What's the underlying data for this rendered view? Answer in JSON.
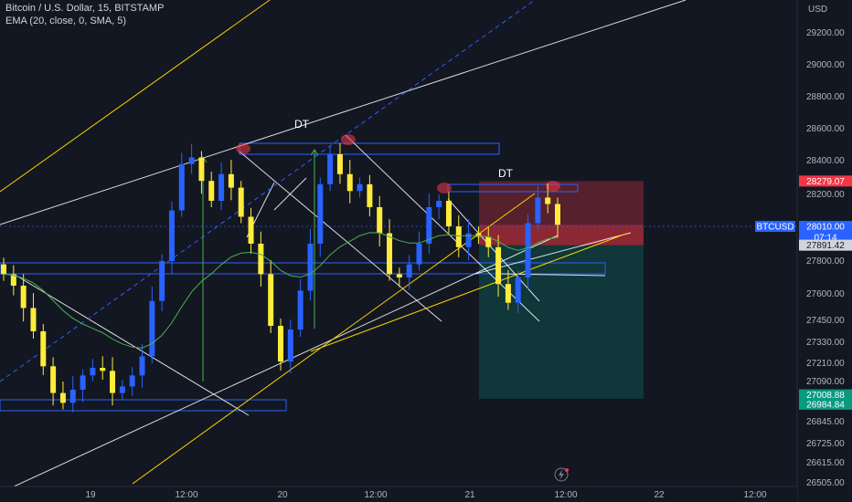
{
  "header": {
    "symbol_line": "Bitcoin / U.S. Dollar, 15, BITSTAMP",
    "indicator_line": "EMA (20, close, 0, SMA, 5)"
  },
  "axis": {
    "currency": "USD",
    "price_ticks": [
      "29200.00",
      "29000.00",
      "28800.00",
      "28600.00",
      "28400.00",
      "28200.00",
      "28000.00",
      "27800.00",
      "27600.00",
      "27450.00",
      "27330.00",
      "27210.00",
      "27090.00",
      "26845.00",
      "26725.00",
      "26615.00",
      "26505.00"
    ],
    "time_ticks": [
      "19",
      "12:00",
      "20",
      "12:00",
      "21",
      "12:00",
      "22",
      "12:00"
    ]
  },
  "labels": {
    "symbol_tag": "BTCUSD",
    "current_price": "28010.00",
    "countdown": "07:14",
    "stop_price": "28279.07",
    "entry_price": "27891.42",
    "target_price_1": "27008.88",
    "target_price_2": "26984.84"
  },
  "annotations": [
    "DT",
    "DT"
  ],
  "colors": {
    "background": "#131722",
    "bull": "#2962ff",
    "bear": "#ffeb3b",
    "ema": "#4caf50",
    "stop_zone": "#f23645",
    "target_zone": "#089981",
    "trendline": "#ffffff",
    "yellow_line": "#f7d300",
    "rectangle": "#2962ff",
    "price_tag": "#2962ff",
    "stop_tag": "#f23645",
    "target_tag": "#089981"
  },
  "chart_data": {
    "type": "candlestick",
    "interval": "15",
    "x_labels": [
      "19",
      "12:00",
      "20",
      "12:00",
      "21",
      "12:00",
      "22",
      "12:00"
    ],
    "ylim": [
      26505,
      29300
    ],
    "close_series": [
      27720,
      27650,
      27520,
      27390,
      27190,
      27020,
      26960,
      27040,
      27130,
      27180,
      27160,
      27020,
      27060,
      27130,
      27250,
      27560,
      27800,
      28100,
      28380,
      28420,
      28280,
      28160,
      28320,
      28240,
      28060,
      27900,
      27720,
      27420,
      27220,
      27400,
      27620,
      27900,
      28260,
      28440,
      28320,
      28220,
      28260,
      28120,
      27960,
      27720,
      27700,
      27780,
      27900,
      28120,
      28160,
      28000,
      27880,
      27960,
      27940,
      27880,
      27660,
      27550,
      27700,
      28020,
      28180,
      28140,
      28010
    ],
    "ema_period": 20,
    "trade_position": {
      "direction": "short",
      "entry": 27891.42,
      "stop": 28279.07,
      "targets": [
        27008.88,
        26984.84
      ]
    },
    "patterns": [
      "DT",
      "DT"
    ],
    "current_price": 28010.0,
    "grid": false
  }
}
